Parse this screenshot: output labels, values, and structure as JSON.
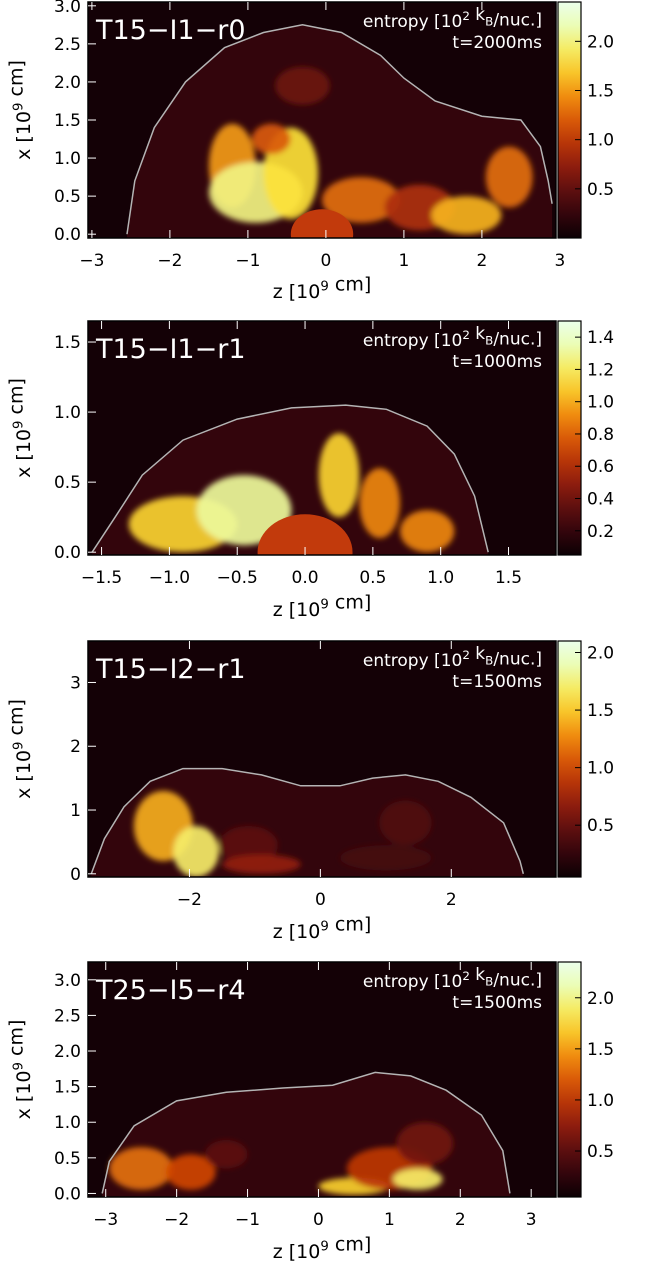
{
  "chart_data": [
    {
      "type": "heatmap",
      "title": "T15−I1−r0",
      "quantity_label": "entropy [10² k₂/nuc.]",
      "time_label": "t=2000ms",
      "xlabel": "z [10⁹ cm]",
      "ylabel": "x [10⁹ cm]",
      "xlim": [
        -3.05,
        2.95
      ],
      "ylim": [
        -0.05,
        3.05
      ],
      "xticks": [
        -3,
        -2,
        -1,
        0,
        1,
        2,
        3
      ],
      "xtick_labels": [
        "−3",
        "−2",
        "−1",
        "0",
        "1",
        "2",
        "3"
      ],
      "yticks": [
        0.0,
        0.5,
        1.0,
        1.5,
        2.0,
        2.5,
        3.0
      ],
      "ytick_labels": [
        "0.0",
        "0.5",
        "1.0",
        "1.5",
        "2.0",
        "2.5",
        "3.0"
      ],
      "colorbar": {
        "min": 0.0,
        "max": 2.4,
        "ticks": [
          0.5,
          1.0,
          1.5,
          2.0
        ],
        "tick_labels": [
          "0.5",
          "1.0",
          "1.5",
          "2.0"
        ]
      },
      "shock_front": [
        [
          -2.55,
          0.0
        ],
        [
          -2.45,
          0.7
        ],
        [
          -2.2,
          1.4
        ],
        [
          -1.8,
          2.0
        ],
        [
          -1.3,
          2.45
        ],
        [
          -0.8,
          2.65
        ],
        [
          -0.3,
          2.75
        ],
        [
          0.2,
          2.65
        ],
        [
          0.7,
          2.35
        ],
        [
          1.0,
          2.05
        ],
        [
          1.4,
          1.75
        ],
        [
          2.0,
          1.55
        ],
        [
          2.5,
          1.5
        ],
        [
          2.75,
          1.15
        ],
        [
          2.85,
          0.7
        ],
        [
          2.9,
          0.4
        ]
      ],
      "dense_core": {
        "center_z": -0.05,
        "radius": 0.4
      },
      "plumes": [
        {
          "z": -1.2,
          "x": 0.9,
          "rz": 0.3,
          "rx": 0.55,
          "s": 1.5
        },
        {
          "z": -0.9,
          "x": 0.55,
          "rz": 0.6,
          "rx": 0.4,
          "s": 2.0
        },
        {
          "z": -0.45,
          "x": 0.8,
          "rz": 0.35,
          "rx": 0.6,
          "s": 1.8
        },
        {
          "z": -0.7,
          "x": 1.25,
          "rz": 0.25,
          "rx": 0.2,
          "s": 1.2
        },
        {
          "z": -0.3,
          "x": 1.95,
          "rz": 0.35,
          "rx": 0.25,
          "s": 0.55
        },
        {
          "z": 0.45,
          "x": 0.45,
          "rz": 0.5,
          "rx": 0.3,
          "s": 1.3
        },
        {
          "z": 1.2,
          "x": 0.35,
          "rz": 0.45,
          "rx": 0.3,
          "s": 0.9
        },
        {
          "z": 1.8,
          "x": 0.25,
          "rz": 0.45,
          "rx": 0.25,
          "s": 1.6
        },
        {
          "z": 2.35,
          "x": 0.75,
          "rz": 0.3,
          "rx": 0.4,
          "s": 1.3
        }
      ]
    },
    {
      "type": "heatmap",
      "title": "T15−I1−r1",
      "quantity_label": "entropy [10² k₂/nuc.]",
      "time_label": "t=1000ms",
      "xlabel": "z [10⁹ cm]",
      "ylabel": "x [10⁹ cm]",
      "xlim": [
        -1.6,
        1.85
      ],
      "ylim": [
        -0.02,
        1.65
      ],
      "xticks": [
        -1.5,
        -1.0,
        -0.5,
        0.0,
        0.5,
        1.0,
        1.5
      ],
      "xtick_labels": [
        "−1.5",
        "−1.0",
        "−0.5",
        "0.0",
        "0.5",
        "1.0",
        "1.5"
      ],
      "yticks": [
        0.0,
        0.5,
        1.0,
        1.5
      ],
      "ytick_labels": [
        "0.0",
        "0.5",
        "1.0",
        "1.5"
      ],
      "colorbar": {
        "min": 0.05,
        "max": 1.5,
        "ticks": [
          0.2,
          0.4,
          0.6,
          0.8,
          1.0,
          1.2,
          1.4
        ],
        "tick_labels": [
          "0.2",
          "0.4",
          "0.6",
          "0.8",
          "1.0",
          "1.2",
          "1.4"
        ]
      },
      "shock_front": [
        [
          -1.57,
          0.0
        ],
        [
          -1.4,
          0.25
        ],
        [
          -1.2,
          0.55
        ],
        [
          -0.9,
          0.8
        ],
        [
          -0.5,
          0.95
        ],
        [
          -0.1,
          1.03
        ],
        [
          0.3,
          1.05
        ],
        [
          0.6,
          1.02
        ],
        [
          0.9,
          0.9
        ],
        [
          1.1,
          0.7
        ],
        [
          1.25,
          0.4
        ],
        [
          1.35,
          0.0
        ]
      ],
      "dense_core": {
        "center_z": 0.0,
        "radius": 0.35
      },
      "plumes": [
        {
          "z": -0.9,
          "x": 0.2,
          "rz": 0.4,
          "rx": 0.2,
          "s": 1.1
        },
        {
          "z": -0.45,
          "x": 0.3,
          "rz": 0.35,
          "rx": 0.25,
          "s": 1.3
        },
        {
          "z": 0.25,
          "x": 0.55,
          "rz": 0.15,
          "rx": 0.3,
          "s": 1.1
        },
        {
          "z": 0.55,
          "x": 0.35,
          "rz": 0.15,
          "rx": 0.25,
          "s": 0.9
        },
        {
          "z": 0.9,
          "x": 0.15,
          "rz": 0.2,
          "rx": 0.15,
          "s": 0.9
        }
      ]
    },
    {
      "type": "heatmap",
      "title": "T15−I2−r1",
      "quantity_label": "entropy [10² k₂/nuc.]",
      "time_label": "t=1500ms",
      "xlabel": "z [10⁹ cm]",
      "ylabel": "x [10⁹ cm]",
      "xlim": [
        -3.55,
        3.6
      ],
      "ylim": [
        -0.05,
        3.65
      ],
      "xticks": [
        -2,
        0,
        2
      ],
      "xtick_labels": [
        "−2",
        "0",
        "2"
      ],
      "yticks": [
        0,
        1,
        2,
        3
      ],
      "ytick_labels": [
        "0",
        "1",
        "2",
        "3"
      ],
      "colorbar": {
        "min": 0.05,
        "max": 2.1,
        "ticks": [
          0.5,
          1.0,
          1.5,
          2.0
        ],
        "tick_labels": [
          "0.5",
          "1.0",
          "1.5",
          "2.0"
        ]
      },
      "shock_front": [
        [
          -3.5,
          0.0
        ],
        [
          -3.3,
          0.55
        ],
        [
          -3.0,
          1.05
        ],
        [
          -2.6,
          1.45
        ],
        [
          -2.1,
          1.65
        ],
        [
          -1.5,
          1.65
        ],
        [
          -0.9,
          1.55
        ],
        [
          -0.3,
          1.38
        ],
        [
          0.3,
          1.38
        ],
        [
          0.8,
          1.5
        ],
        [
          1.3,
          1.55
        ],
        [
          1.8,
          1.45
        ],
        [
          2.3,
          1.2
        ],
        [
          2.8,
          0.8
        ],
        [
          3.05,
          0.2
        ],
        [
          3.1,
          0.0
        ]
      ],
      "dense_core": null,
      "plumes": [
        {
          "z": -2.4,
          "x": 0.75,
          "rz": 0.45,
          "rx": 0.55,
          "s": 1.4
        },
        {
          "z": -1.9,
          "x": 0.35,
          "rz": 0.35,
          "rx": 0.4,
          "s": 1.7
        },
        {
          "z": -1.1,
          "x": 0.45,
          "rz": 0.45,
          "rx": 0.3,
          "s": 0.45
        },
        {
          "z": -0.9,
          "x": 0.15,
          "rz": 0.6,
          "rx": 0.15,
          "s": 0.7
        },
        {
          "z": 1.3,
          "x": 0.8,
          "rz": 0.4,
          "rx": 0.35,
          "s": 0.4
        },
        {
          "z": 1.0,
          "x": 0.25,
          "rz": 0.7,
          "rx": 0.2,
          "s": 0.35
        }
      ]
    },
    {
      "type": "heatmap",
      "title": "T25−I5−r4",
      "quantity_label": "entropy [10² k₂/nuc.]",
      "time_label": "t=1500ms",
      "xlabel": "z [10⁹ cm]",
      "ylabel": "x [10⁹ cm]",
      "xlim": [
        -3.25,
        3.35
      ],
      "ylim": [
        -0.05,
        3.25
      ],
      "xticks": [
        -3,
        -2,
        -1,
        0,
        1,
        2,
        3
      ],
      "xtick_labels": [
        "−3",
        "−2",
        "−1",
        "0",
        "1",
        "2",
        "3"
      ],
      "yticks": [
        0.0,
        0.5,
        1.0,
        1.5,
        2.0,
        2.5,
        3.0
      ],
      "ytick_labels": [
        "0.0",
        "0.5",
        "1.0",
        "1.5",
        "2.0",
        "2.5",
        "3.0"
      ],
      "colorbar": {
        "min": 0.05,
        "max": 2.35,
        "ticks": [
          0.5,
          1.0,
          1.5,
          2.0
        ],
        "tick_labels": [
          "0.5",
          "1.0",
          "1.5",
          "2.0"
        ]
      },
      "shock_front": [
        [
          -3.05,
          0.0
        ],
        [
          -2.95,
          0.45
        ],
        [
          -2.6,
          0.95
        ],
        [
          -2.0,
          1.3
        ],
        [
          -1.3,
          1.42
        ],
        [
          -0.5,
          1.48
        ],
        [
          0.2,
          1.52
        ],
        [
          0.8,
          1.7
        ],
        [
          1.3,
          1.65
        ],
        [
          1.8,
          1.45
        ],
        [
          2.3,
          1.1
        ],
        [
          2.6,
          0.6
        ],
        [
          2.7,
          0.0
        ]
      ],
      "dense_core": null,
      "plumes": [
        {
          "z": -2.5,
          "x": 0.35,
          "rz": 0.45,
          "rx": 0.3,
          "s": 1.3
        },
        {
          "z": -1.8,
          "x": 0.3,
          "rz": 0.35,
          "rx": 0.25,
          "s": 1.1
        },
        {
          "z": -1.3,
          "x": 0.55,
          "rz": 0.3,
          "rx": 0.2,
          "s": 0.5
        },
        {
          "z": 0.5,
          "x": 0.1,
          "rz": 0.5,
          "rx": 0.12,
          "s": 1.7
        },
        {
          "z": 1.0,
          "x": 0.35,
          "rz": 0.6,
          "rx": 0.3,
          "s": 1.0
        },
        {
          "z": 1.5,
          "x": 0.7,
          "rz": 0.4,
          "rx": 0.3,
          "s": 0.6
        },
        {
          "z": 1.4,
          "x": 0.2,
          "rz": 0.35,
          "rx": 0.15,
          "s": 1.9
        }
      ]
    }
  ]
}
